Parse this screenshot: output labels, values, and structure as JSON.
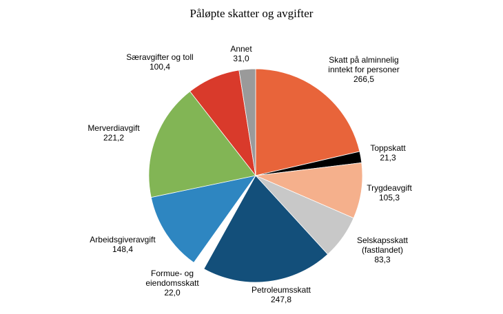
{
  "chart_data": {
    "type": "pie",
    "title": "Påløpte skatter og avgifter",
    "categories": [
      "Skatt på alminnelig inntekt for personer",
      "Toppskatt",
      "Trygdeavgift",
      "Selskapsskatt (fastlandet)",
      "Petroleumsskatt",
      "Formue- og eiendomsskatt",
      "Arbeidsgiveravgift",
      "Merverdiavgift",
      "Særavgifter og toll",
      "Annet"
    ],
    "values": [
      266.5,
      21.3,
      105.3,
      83.3,
      247.8,
      22.0,
      148.4,
      221.2,
      100.4,
      31.0
    ],
    "value_labels": [
      "266,5",
      "21,3",
      "105,3",
      "83,3",
      "247,8",
      "22,0",
      "148,4",
      "221,2",
      "100,4",
      "31,0"
    ],
    "colors": [
      "#e8643a",
      "#000000",
      "#f5b08c",
      "#c8c8c8",
      "#134f7a",
      "#ffffff",
      "#2e86c1",
      "#82b555",
      "#d93a2b",
      "#9a9a9a"
    ]
  }
}
